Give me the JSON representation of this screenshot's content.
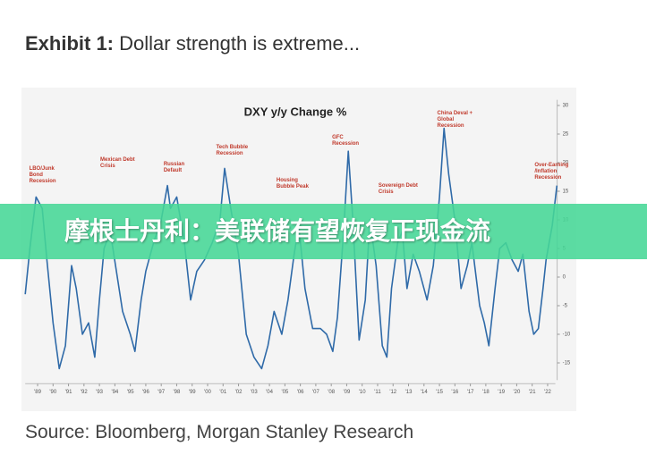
{
  "header": {
    "label": "Exhibit 1:",
    "title": "Dollar strength is extreme..."
  },
  "banner": "摩根士丹利：美联储有望恢复正现金流",
  "source": "Source: Bloomberg, Morgan Stanley Research",
  "chart_data": {
    "type": "line",
    "title": "DXY y/y Change %",
    "x": [
      1988.2,
      1988.5,
      1988.9,
      1989.3,
      1989.6,
      1990.0,
      1990.4,
      1990.8,
      1991.2,
      1991.5,
      1991.9,
      1992.3,
      1992.7,
      1993.0,
      1993.3,
      1993.7,
      1994.1,
      1994.5,
      1995.0,
      1995.3,
      1995.7,
      1996.0,
      1996.5,
      1997.0,
      1997.4,
      1997.6,
      1998.0,
      1998.5,
      1998.9,
      1999.3,
      1999.8,
      2000.3,
      2000.8,
      2001.1,
      2001.5,
      2002.0,
      2002.5,
      2003.0,
      2003.5,
      2003.9,
      2004.3,
      2004.8,
      2005.2,
      2005.6,
      2005.9,
      2006.3,
      2006.8,
      2007.3,
      2007.7,
      2008.1,
      2008.4,
      2008.8,
      2009.1,
      2009.4,
      2009.8,
      2010.2,
      2010.5,
      2010.9,
      2011.3,
      2011.6,
      2011.9,
      2012.3,
      2012.6,
      2012.9,
      2013.3,
      2013.7,
      2014.2,
      2014.6,
      2015.0,
      2015.3,
      2015.6,
      2016.0,
      2016.4,
      2016.8,
      2017.1,
      2017.6,
      2017.9,
      2018.2,
      2018.6,
      2018.9,
      2019.3,
      2019.7,
      2020.1,
      2020.4,
      2020.8,
      2021.1,
      2021.4,
      2021.7,
      2021.9,
      2022.3,
      2022.6
    ],
    "series": [
      {
        "name": "DXY",
        "color": "#2f6aa8",
        "values": [
          -3,
          5,
          14,
          12,
          3,
          -8,
          -16,
          -12,
          2,
          -2,
          -10,
          -8,
          -14,
          -4,
          5,
          8,
          1,
          -6,
          -10,
          -13,
          -4,
          1,
          6,
          10,
          16,
          12,
          14,
          6,
          -4,
          1,
          3,
          6,
          10,
          19,
          12,
          4,
          -10,
          -14,
          -16,
          -12,
          -6,
          -10,
          -4,
          4,
          9,
          -2,
          -9,
          -9,
          -10,
          -13,
          -7,
          8,
          22,
          10,
          -11,
          -4,
          10,
          2,
          -12,
          -14,
          -2,
          6,
          8,
          -2,
          4,
          1,
          -4,
          2,
          14,
          26,
          18,
          10,
          -2,
          2,
          6,
          -5,
          -8,
          -12,
          -2,
          5,
          6,
          3,
          1,
          4,
          -6,
          -10,
          -9,
          -2,
          3,
          9,
          16
        ]
      }
    ],
    "annotations": [
      {
        "text": "LBO/Junk Bond Recession",
        "x": 1988.8
      },
      {
        "text": "Mexican Debt Crisis",
        "x": 1993.4
      },
      {
        "text": "Russian Default",
        "x": 1997.5
      },
      {
        "text": "Tech Bubble Recession",
        "x": 2000.9
      },
      {
        "text": "Housing Bubble Peak",
        "x": 2004.8
      },
      {
        "text": "GFC Recession",
        "x": 2008.4
      },
      {
        "text": "Sovereign Debt Crisis",
        "x": 2011.4
      },
      {
        "text": "China Deval + Global Recession",
        "x": 2015.2
      },
      {
        "text": "Over-Earning /Inflation Recession",
        "x": 2021.5
      }
    ],
    "xlim": [
      1988.2,
      2022.5
    ],
    "ylim": [
      -18,
      31
    ],
    "xticks": [
      {
        "value": 1989,
        "label": "'89"
      },
      {
        "value": 1990,
        "label": "'90"
      },
      {
        "value": 1991,
        "label": "'91"
      },
      {
        "value": 1992,
        "label": "'92"
      },
      {
        "value": 1993,
        "label": "'93"
      },
      {
        "value": 1994,
        "label": "'94"
      },
      {
        "value": 1995,
        "label": "'95"
      },
      {
        "value": 1996,
        "label": "'96"
      },
      {
        "value": 1997,
        "label": "'97"
      },
      {
        "value": 1998,
        "label": "'98"
      },
      {
        "value": 1999,
        "label": "'99"
      },
      {
        "value": 2000,
        "label": "'00"
      },
      {
        "value": 2001,
        "label": "'01"
      },
      {
        "value": 2002,
        "label": "'02"
      },
      {
        "value": 2003,
        "label": "'03"
      },
      {
        "value": 2004,
        "label": "'04"
      },
      {
        "value": 2005,
        "label": "'05"
      },
      {
        "value": 2006,
        "label": "'06"
      },
      {
        "value": 2007,
        "label": "'07"
      },
      {
        "value": 2008,
        "label": "'08"
      },
      {
        "value": 2009,
        "label": "'09"
      },
      {
        "value": 2010,
        "label": "'10"
      },
      {
        "value": 2011,
        "label": "'11"
      },
      {
        "value": 2012,
        "label": "'12"
      },
      {
        "value": 2013,
        "label": "'13"
      },
      {
        "value": 2014,
        "label": "'14"
      },
      {
        "value": 2015,
        "label": "'15"
      },
      {
        "value": 2016,
        "label": "'16"
      },
      {
        "value": 2017,
        "label": "'17"
      },
      {
        "value": 2018,
        "label": "'18"
      },
      {
        "value": 2019,
        "label": "'19"
      },
      {
        "value": 2020,
        "label": "'20"
      },
      {
        "value": 2021,
        "label": "'21"
      },
      {
        "value": 2022,
        "label": "'22"
      }
    ],
    "yticks": [
      -15,
      -10,
      -5,
      0,
      5,
      10,
      15,
      20,
      25,
      30
    ]
  }
}
